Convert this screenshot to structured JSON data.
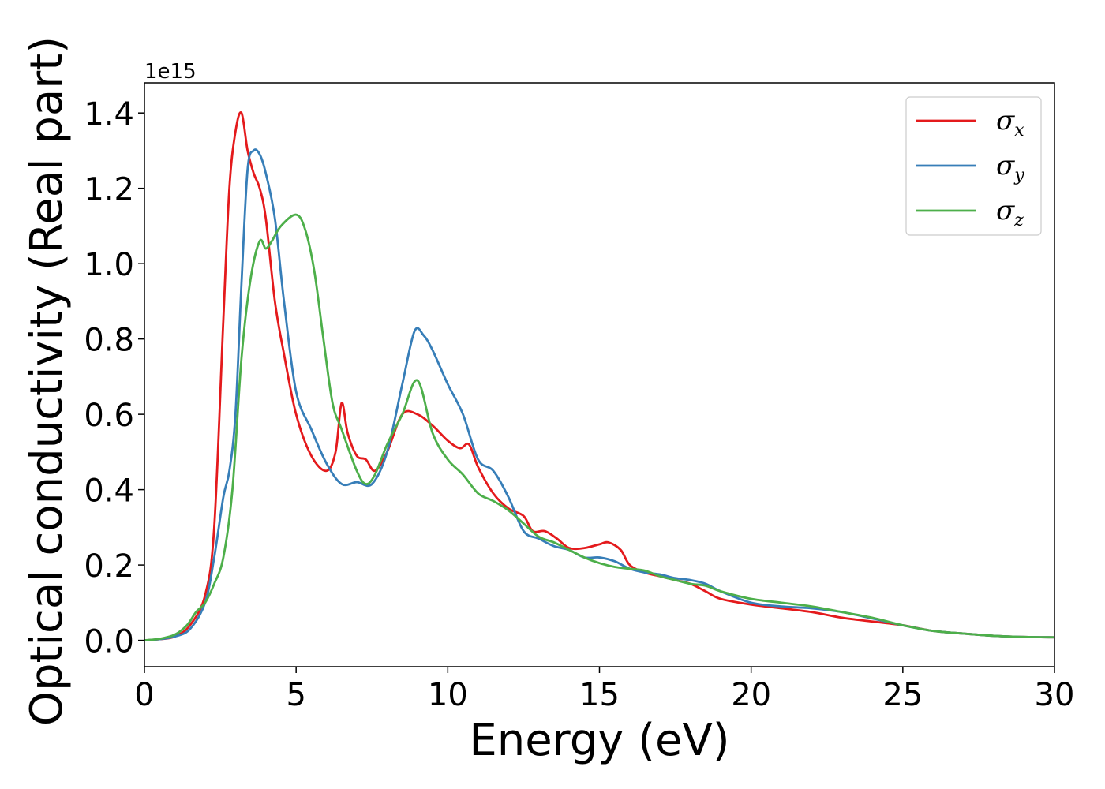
{
  "chart_data": {
    "type": "line",
    "xlabel": "Energy (eV)",
    "ylabel": "Optical conductivity (Real part)",
    "y_offset_label": "1e15",
    "xlim": [
      0,
      30
    ],
    "ylim": [
      -0.07,
      1.48
    ],
    "x_ticks": [
      0,
      5,
      10,
      15,
      20,
      25,
      30
    ],
    "x_tick_labels": [
      "0",
      "5",
      "10",
      "15",
      "20",
      "25",
      "30"
    ],
    "y_ticks": [
      0.0,
      0.2,
      0.4,
      0.6,
      0.8,
      1.0,
      1.2,
      1.4
    ],
    "y_tick_labels": [
      "0.0",
      "0.2",
      "0.4",
      "0.6",
      "0.8",
      "1.0",
      "1.2",
      "1.4"
    ],
    "grid": false,
    "legend_position": "top-right",
    "series": [
      {
        "name": "σx",
        "legend_symbol": "σ",
        "legend_sub": "x",
        "color": "#e41a1c",
        "x": [
          0,
          0.5,
          1.0,
          1.5,
          2.0,
          2.3,
          2.6,
          2.8,
          3.0,
          3.2,
          3.4,
          3.6,
          3.8,
          4.0,
          4.3,
          4.6,
          5.0,
          5.5,
          6.0,
          6.3,
          6.5,
          6.7,
          7.0,
          7.3,
          7.6,
          8.0,
          8.5,
          9.0,
          9.5,
          10.0,
          10.4,
          10.7,
          11.0,
          11.5,
          12.0,
          12.5,
          12.8,
          13.2,
          13.6,
          14.0,
          14.5,
          15.0,
          15.3,
          15.7,
          16.0,
          16.5,
          17.0,
          17.5,
          18.0,
          18.5,
          19.0,
          20.0,
          21.0,
          22.0,
          23.0,
          24.0,
          25.0,
          26.0,
          27.0,
          28.0,
          29.0,
          30.0
        ],
        "y": [
          0.0,
          0.003,
          0.01,
          0.04,
          0.12,
          0.3,
          0.85,
          1.2,
          1.35,
          1.4,
          1.3,
          1.24,
          1.2,
          1.12,
          0.9,
          0.76,
          0.6,
          0.49,
          0.45,
          0.5,
          0.63,
          0.55,
          0.49,
          0.48,
          0.45,
          0.5,
          0.6,
          0.6,
          0.57,
          0.53,
          0.51,
          0.52,
          0.46,
          0.39,
          0.35,
          0.33,
          0.29,
          0.29,
          0.27,
          0.245,
          0.245,
          0.255,
          0.26,
          0.24,
          0.2,
          0.18,
          0.17,
          0.16,
          0.15,
          0.13,
          0.11,
          0.095,
          0.085,
          0.075,
          0.06,
          0.05,
          0.04,
          0.025,
          0.018,
          0.012,
          0.009,
          0.008
        ]
      },
      {
        "name": "σy",
        "legend_symbol": "σ",
        "legend_sub": "y",
        "color": "#377eb8",
        "x": [
          0,
          0.5,
          1.0,
          1.5,
          2.0,
          2.3,
          2.6,
          2.8,
          3.0,
          3.2,
          3.4,
          3.6,
          3.8,
          4.0,
          4.3,
          4.6,
          5.0,
          5.5,
          6.0,
          6.5,
          7.0,
          7.5,
          8.0,
          8.5,
          8.9,
          9.2,
          9.5,
          10.0,
          10.5,
          11.0,
          11.5,
          12.0,
          12.5,
          13.0,
          13.5,
          14.0,
          14.5,
          15.0,
          15.5,
          16.0,
          16.5,
          17.0,
          17.5,
          18.0,
          18.5,
          19.0,
          20.0,
          21.0,
          22.0,
          23.0,
          24.0,
          25.0,
          26.0,
          27.0,
          28.0,
          29.0,
          30.0
        ],
        "y": [
          0.0,
          0.003,
          0.01,
          0.03,
          0.1,
          0.22,
          0.38,
          0.45,
          0.6,
          0.95,
          1.25,
          1.3,
          1.29,
          1.24,
          1.12,
          0.9,
          0.66,
          0.56,
          0.47,
          0.415,
          0.42,
          0.415,
          0.5,
          0.68,
          0.82,
          0.81,
          0.77,
          0.68,
          0.6,
          0.48,
          0.45,
          0.38,
          0.29,
          0.27,
          0.25,
          0.24,
          0.22,
          0.22,
          0.21,
          0.19,
          0.18,
          0.175,
          0.165,
          0.16,
          0.15,
          0.13,
          0.1,
          0.09,
          0.085,
          0.075,
          0.058,
          0.04,
          0.025,
          0.018,
          0.012,
          0.009,
          0.008
        ]
      },
      {
        "name": "σz",
        "legend_symbol": "σ",
        "legend_sub": "z",
        "color": "#4daf4a",
        "x": [
          0,
          0.5,
          1.0,
          1.4,
          1.7,
          2.0,
          2.3,
          2.6,
          2.9,
          3.2,
          3.5,
          3.8,
          4.0,
          4.2,
          4.5,
          5.0,
          5.3,
          5.6,
          5.9,
          6.2,
          6.5,
          7.0,
          7.3,
          7.6,
          8.0,
          8.5,
          9.0,
          9.5,
          10.0,
          10.5,
          11.0,
          11.5,
          12.0,
          12.5,
          13.0,
          13.5,
          14.0,
          14.5,
          15.0,
          15.5,
          16.0,
          16.5,
          17.0,
          17.5,
          18.0,
          18.5,
          19.0,
          20.0,
          21.0,
          22.0,
          23.0,
          24.0,
          25.0,
          26.0,
          27.0,
          28.0,
          29.0,
          30.0
        ],
        "y": [
          0.0,
          0.004,
          0.015,
          0.04,
          0.075,
          0.1,
          0.15,
          0.22,
          0.4,
          0.75,
          0.96,
          1.06,
          1.04,
          1.06,
          1.1,
          1.13,
          1.09,
          0.98,
          0.8,
          0.63,
          0.56,
          0.45,
          0.415,
          0.44,
          0.52,
          0.6,
          0.69,
          0.55,
          0.48,
          0.44,
          0.39,
          0.37,
          0.345,
          0.31,
          0.275,
          0.26,
          0.24,
          0.22,
          0.205,
          0.195,
          0.19,
          0.185,
          0.17,
          0.16,
          0.15,
          0.145,
          0.13,
          0.11,
          0.1,
          0.09,
          0.075,
          0.06,
          0.04,
          0.025,
          0.018,
          0.012,
          0.009,
          0.008
        ]
      }
    ]
  }
}
